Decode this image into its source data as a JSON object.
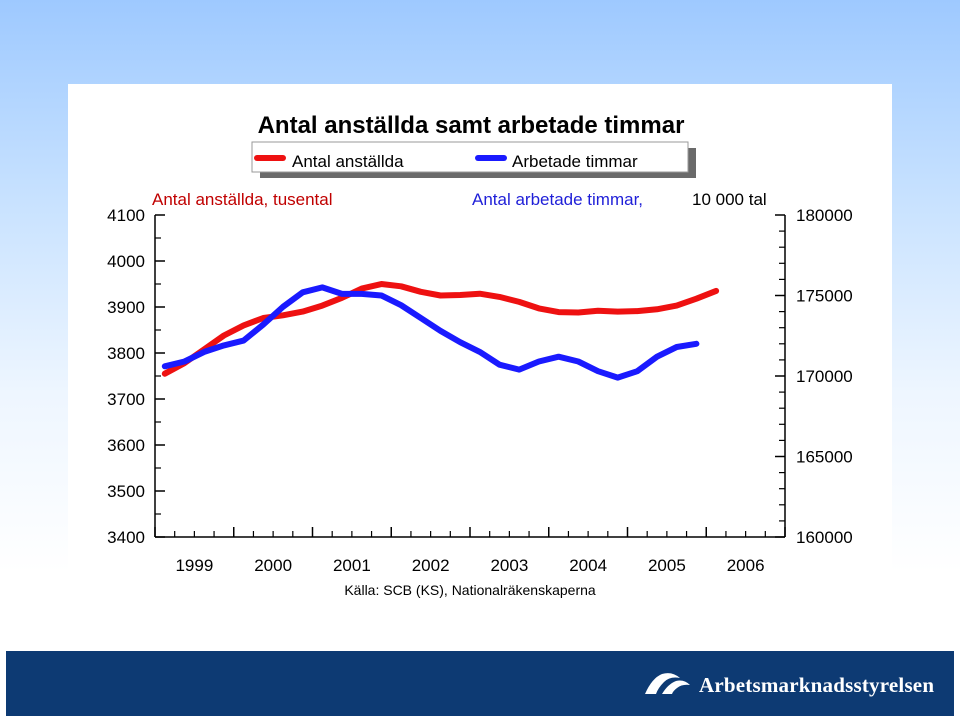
{
  "chart_data": {
    "type": "line",
    "title": "Antal anställda samt arbetade timmar",
    "source": "Källa: SCB (KS), Nationalräkenskaperna",
    "legend": {
      "placement": "top",
      "entries": [
        {
          "label": "Antal anställda",
          "color": "#ee1111"
        },
        {
          "label": "Arbetade timmar",
          "color": "#1a1aff"
        }
      ]
    },
    "left_axis": {
      "title": "Antal anställda, tusental",
      "ylim": [
        3400,
        4100
      ],
      "ticks": [
        "3400",
        "3500",
        "3600",
        "3700",
        "3800",
        "3900",
        "4000",
        "4100"
      ]
    },
    "right_axis": {
      "title": "Antal arbetade timmar,",
      "unit": "10 000 tal",
      "ylim": [
        160000,
        180000
      ],
      "ticks": [
        "160000",
        "165000",
        "170000",
        "175000",
        "180000"
      ]
    },
    "x_axis": {
      "tick_labels": [
        "1999",
        "2000",
        "2001",
        "2002",
        "2003",
        "2004",
        "2005",
        "2006"
      ],
      "quarters_per_year": 4
    },
    "grid": false,
    "series": [
      {
        "name": "Antal anställda",
        "axis": "left",
        "color": "#ee1111",
        "values": [
          3755,
          3778,
          3808,
          3838,
          3860,
          3876,
          3882,
          3890,
          3903,
          3920,
          3940,
          3950,
          3945,
          3933,
          3925,
          3926,
          3929,
          3922,
          3911,
          3897,
          3889,
          3888,
          3892,
          3890,
          3891,
          3895,
          3903,
          3918,
          3935
        ]
      },
      {
        "name": "Arbetade timmar",
        "axis": "right",
        "color": "#1a1aff",
        "values": [
          170600,
          170900,
          171500,
          171900,
          172200,
          173200,
          174300,
          175200,
          175500,
          175100,
          175100,
          175000,
          174400,
          173600,
          172800,
          172100,
          171500,
          170700,
          170400,
          170900,
          171200,
          170900,
          170300,
          169900,
          170300,
          171200,
          171800,
          172000
        ]
      }
    ]
  }
}
